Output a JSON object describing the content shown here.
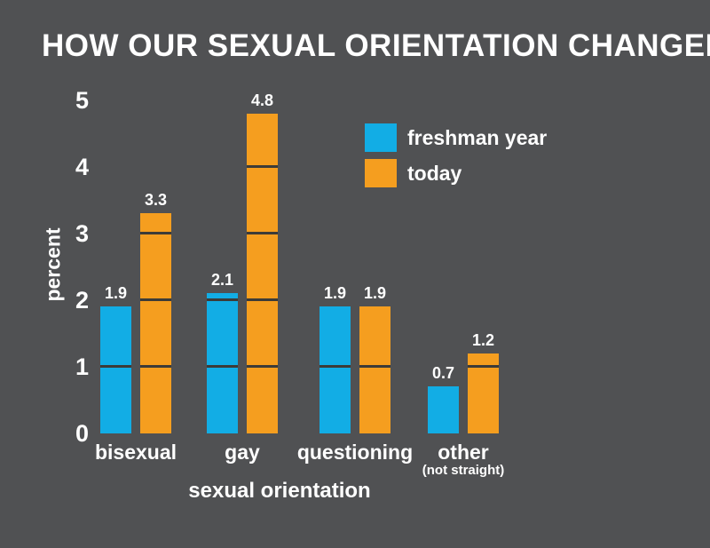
{
  "title": "HOW OUR SEXUAL ORIENTATION CHANGED",
  "colors": {
    "background": "#505153",
    "freshman_blue": "#12ADE5",
    "today_orange": "#F59E1F",
    "bar_divider": "#3C3B38",
    "text": "#FFFFFF"
  },
  "legend": {
    "items": [
      {
        "label": "freshman year",
        "color": "#12ADE5"
      },
      {
        "label": "today",
        "color": "#F59E1F"
      }
    ]
  },
  "chart_data": {
    "type": "bar",
    "title": "HOW OUR SEXUAL ORIENTATION CHANGED",
    "categories": [
      "bisexual",
      "gay",
      "questioning",
      "other"
    ],
    "category_sublabels": [
      "",
      "",
      "",
      "(not straight)"
    ],
    "series": [
      {
        "name": "freshman year",
        "color": "#12ADE5",
        "values": [
          1.9,
          2.1,
          1.9,
          0.7
        ]
      },
      {
        "name": "today",
        "color": "#F59E1F",
        "values": [
          3.3,
          4.8,
          1.9,
          1.2
        ]
      }
    ],
    "xlabel": "sexual orientation",
    "ylabel": "percent",
    "ylim": [
      0,
      5
    ],
    "yticks": [
      0,
      1,
      2,
      3,
      4,
      5
    ],
    "value_labels": true,
    "grid": "dark segment lines drawn inside bars at each integer value",
    "legend_position": "upper right"
  }
}
